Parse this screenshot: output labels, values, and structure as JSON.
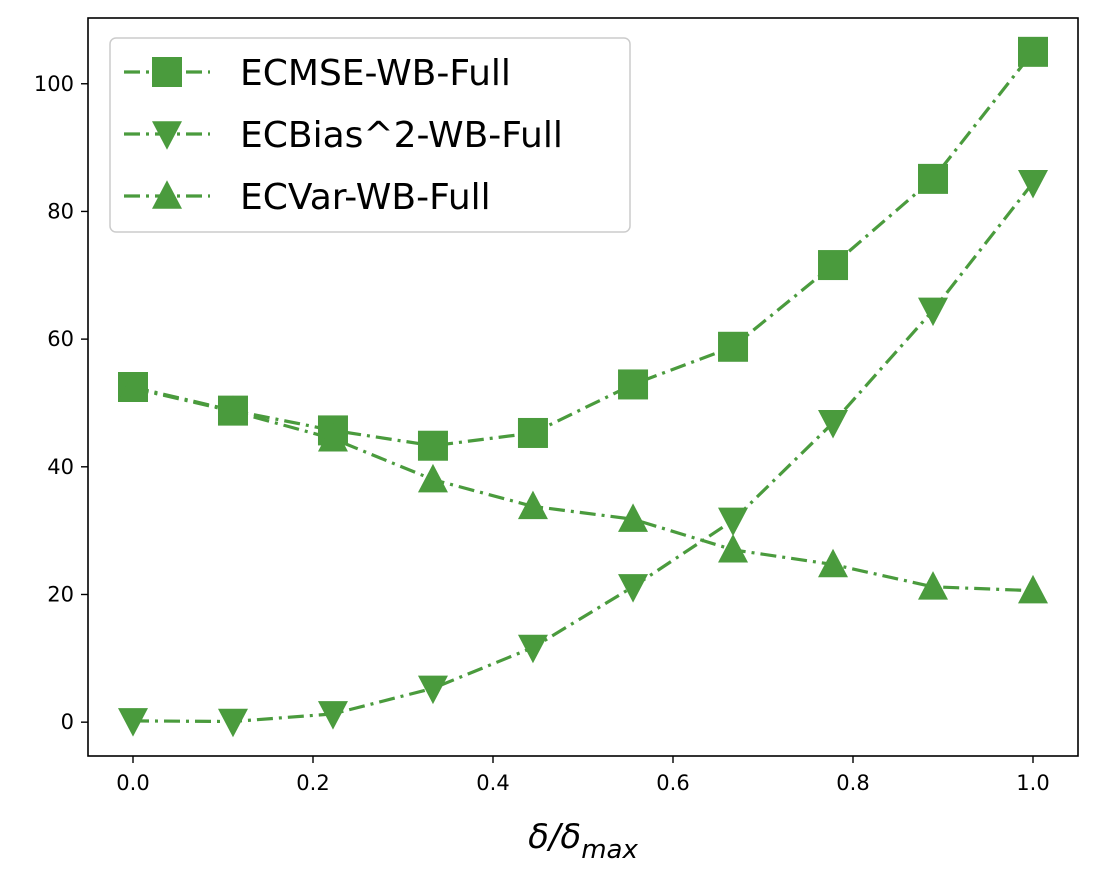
{
  "chart_data": {
    "type": "line",
    "title": "",
    "xlabel_main": "δ/δ",
    "xlabel_sub": "max",
    "ylabel": "",
    "x": [
      0.0,
      0.1111,
      0.2222,
      0.3333,
      0.4444,
      0.5556,
      0.6667,
      0.7778,
      0.8889,
      1.0
    ],
    "xlim": [
      -0.05,
      1.05
    ],
    "ylim": [
      -5.3,
      110.3
    ],
    "xticks": [
      0.0,
      0.2,
      0.4,
      0.6,
      0.8,
      1.0
    ],
    "xtick_labels": [
      "0.0",
      "0.2",
      "0.4",
      "0.6",
      "0.8",
      "1.0"
    ],
    "yticks": [
      0,
      20,
      40,
      60,
      80,
      100
    ],
    "ytick_labels": [
      "0",
      "20",
      "40",
      "60",
      "80",
      "100"
    ],
    "grid": false,
    "legend_position": "top-left",
    "color": "#4a9b3d",
    "series": [
      {
        "name": "ECMSE-WB-Full",
        "marker": "square",
        "values": [
          52.5,
          48.8,
          45.7,
          43.3,
          45.3,
          52.9,
          58.8,
          71.6,
          85.1,
          105.0
        ]
      },
      {
        "name": "ECBias^2-WB-Full",
        "marker": "triangle-down",
        "values": [
          0.2,
          0.1,
          1.3,
          5.3,
          11.7,
          21.2,
          31.6,
          46.9,
          64.5,
          84.5
        ]
      },
      {
        "name": "ECVar-WB-Full",
        "marker": "triangle-up",
        "values": [
          52.3,
          48.7,
          44.4,
          38.0,
          33.8,
          31.8,
          27.0,
          24.7,
          21.2,
          20.6
        ]
      }
    ]
  }
}
